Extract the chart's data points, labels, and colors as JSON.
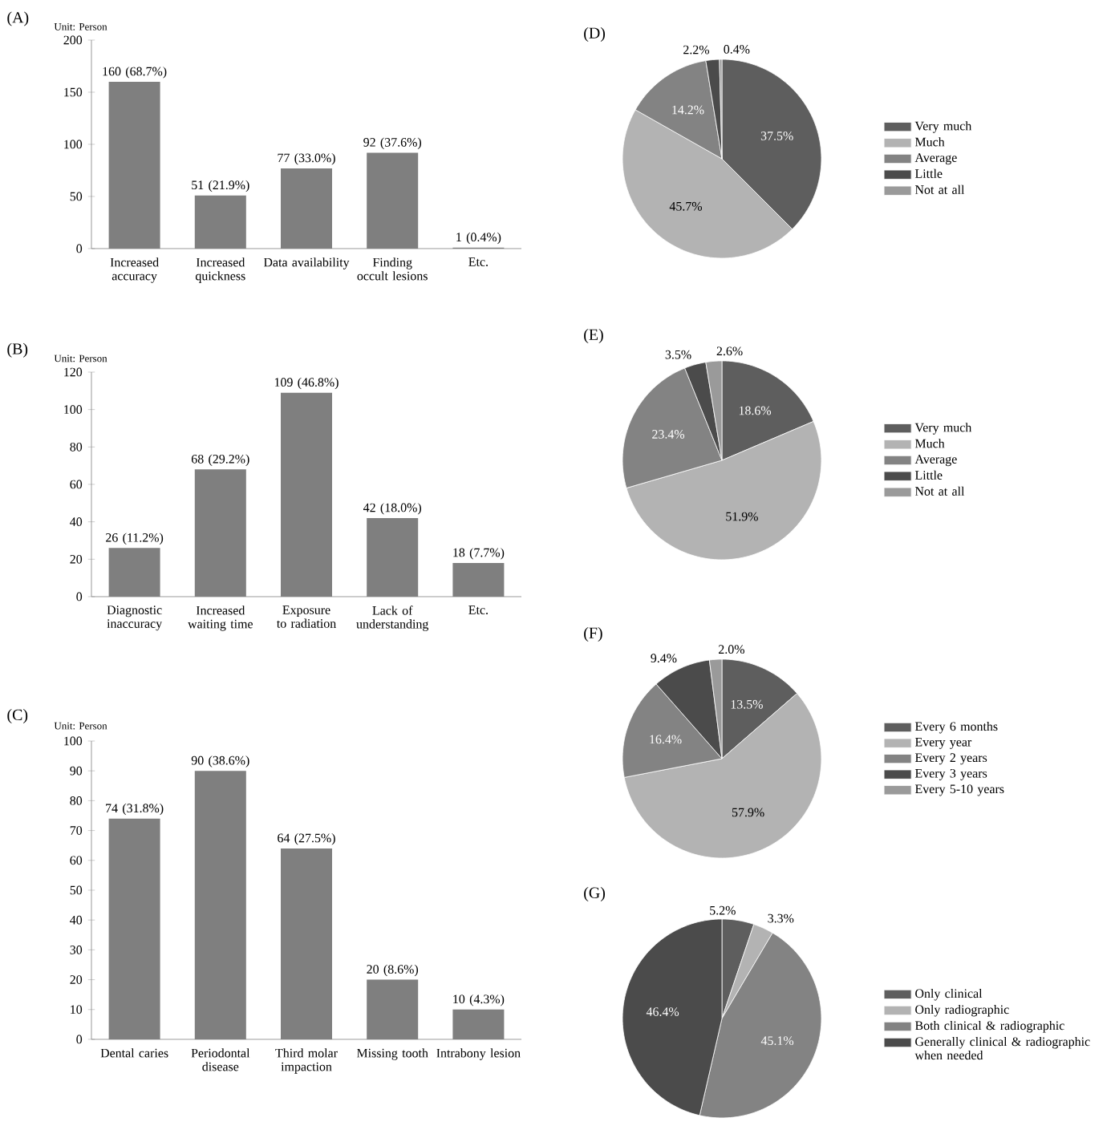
{
  "chart_data": [
    {
      "type": "bar",
      "title": "(A)",
      "ylabel": "Unit: Person",
      "categories": [
        "Increased accuracy",
        "Increased quickness",
        "Data availability",
        "Finding occult lesions",
        "Etc."
      ],
      "values": [
        160,
        51,
        77,
        92,
        1
      ],
      "color": "#7f7f7f",
      "value_labels": [
        "160 (68.7%)",
        "51 (21.9%)",
        "77 (33.0%)",
        "92 (37.6%)",
        "1 (0.4%)"
      ],
      "ylim": [
        0,
        200
      ],
      "yticks": [
        0,
        50,
        100,
        150,
        200
      ]
    },
    {
      "type": "pie",
      "title": "(D)",
      "categories": [
        "Very much",
        "Much",
        "Average",
        "Little",
        "Not at all"
      ],
      "values": [
        37.5,
        45.7,
        14.2,
        2.2,
        0.4
      ],
      "colors": [
        "#5e5e5e",
        "#b3b3b3",
        "#838383",
        "#4b4b4b",
        "#9a9a9a"
      ],
      "value_labels": [
        "37.5%",
        "45.7%",
        "14.2%",
        "2.2%",
        "0.4%"
      ],
      "legend": "right"
    },
    {
      "type": "bar",
      "title": "(B)",
      "ylabel": "Unit: Person",
      "categories": [
        "Diagnostic inaccuracy",
        "Increased waiting time",
        "Exposure to radiation",
        "Lack of understanding",
        "Etc."
      ],
      "values": [
        26,
        68,
        109,
        42,
        18
      ],
      "color": "#7f7f7f",
      "value_labels": [
        "26 (11.2%)",
        "68 (29.2%)",
        "109 (46.8%)",
        "42 (18.0%)",
        "18 (7.7%)"
      ],
      "ylim": [
        0,
        120
      ],
      "yticks": [
        0,
        20,
        40,
        60,
        80,
        100,
        120
      ]
    },
    {
      "type": "pie",
      "title": "(E)",
      "categories": [
        "Very much",
        "Much",
        "Average",
        "Little",
        "Not at all"
      ],
      "values": [
        18.6,
        51.9,
        23.4,
        3.5,
        2.6
      ],
      "colors": [
        "#5e5e5e",
        "#b3b3b3",
        "#838383",
        "#4b4b4b",
        "#9a9a9a"
      ],
      "value_labels": [
        "18.6%",
        "51.9%",
        "23.4%",
        "3.5%",
        "2.6%"
      ],
      "legend": "right"
    },
    {
      "type": "bar",
      "title": "(C)",
      "ylabel": "Unit: Person",
      "categories": [
        "Dental caries",
        "Periodontal disease",
        "Third molar impaction",
        "Missing tooth",
        "Intrabony lesion"
      ],
      "values": [
        74,
        90,
        64,
        20,
        10
      ],
      "color": "#7f7f7f",
      "value_labels": [
        "74 (31.8%)",
        "90 (38.6%)",
        "64 (27.5%)",
        "20 (8.6%)",
        "10 (4.3%)"
      ],
      "ylim": [
        0,
        100
      ],
      "yticks": [
        0,
        10,
        20,
        30,
        40,
        50,
        60,
        70,
        80,
        90,
        100
      ]
    },
    {
      "type": "pie",
      "title": "(F)",
      "categories": [
        "Every 6 months",
        "Every year",
        "Every 2 years",
        "Every 3 years",
        "Every 5-10 years"
      ],
      "values": [
        13.5,
        57.9,
        16.4,
        9.4,
        2.0
      ],
      "colors": [
        "#5e5e5e",
        "#b3b3b3",
        "#838383",
        "#4b4b4b",
        "#9a9a9a"
      ],
      "value_labels": [
        "13.5%",
        "57.9%",
        "16.4%",
        "9.4%",
        "2.0%"
      ],
      "legend": "right"
    },
    {
      "type": "pie",
      "title": "(G)",
      "categories": [
        "Only clinical",
        "Only radiographic",
        "Both clinical & radiographic",
        "Generally clinical & radiographic when needed"
      ],
      "values": [
        5.2,
        3.3,
        45.1,
        46.4
      ],
      "colors": [
        "#5e5e5e",
        "#b3b3b3",
        "#838383",
        "#4b4b4b"
      ],
      "value_labels": [
        "5.2%",
        "3.3%",
        "45.1%",
        "46.4%"
      ],
      "legend": "right"
    }
  ]
}
